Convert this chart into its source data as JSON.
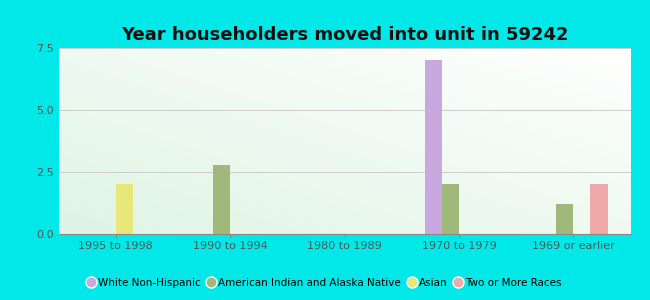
{
  "title": "Year householders moved into unit in 59242",
  "categories": [
    "1995 to 1998",
    "1990 to 1994",
    "1980 to 1989",
    "1970 to 1979",
    "1969 or earlier"
  ],
  "series": {
    "White Non-Hispanic": {
      "color": "#c9a8e0",
      "values": [
        0,
        0,
        0,
        7.0,
        0
      ]
    },
    "American Indian and Alaska Native": {
      "color": "#a0b87a",
      "values": [
        0,
        2.8,
        0,
        2.0,
        1.2
      ]
    },
    "Asian": {
      "color": "#e8e87a",
      "values": [
        2.0,
        0,
        0,
        0,
        0
      ]
    },
    "Two or More Races": {
      "color": "#f0a8a8",
      "values": [
        0,
        0,
        0,
        0,
        2.0
      ]
    }
  },
  "ylim": [
    0,
    7.5
  ],
  "yticks": [
    0,
    2.5,
    5,
    7.5
  ],
  "outer_background": "#00e8e8",
  "bar_width": 0.15,
  "legend_colors": {
    "White Non-Hispanic": "#c9a8e0",
    "American Indian and Alaska Native": "#a0b87a",
    "Asian": "#e8e87a",
    "Two or More Races": "#f0a8a8"
  },
  "title_fontsize": 13,
  "tick_fontsize": 8,
  "legend_fontsize": 7.5
}
